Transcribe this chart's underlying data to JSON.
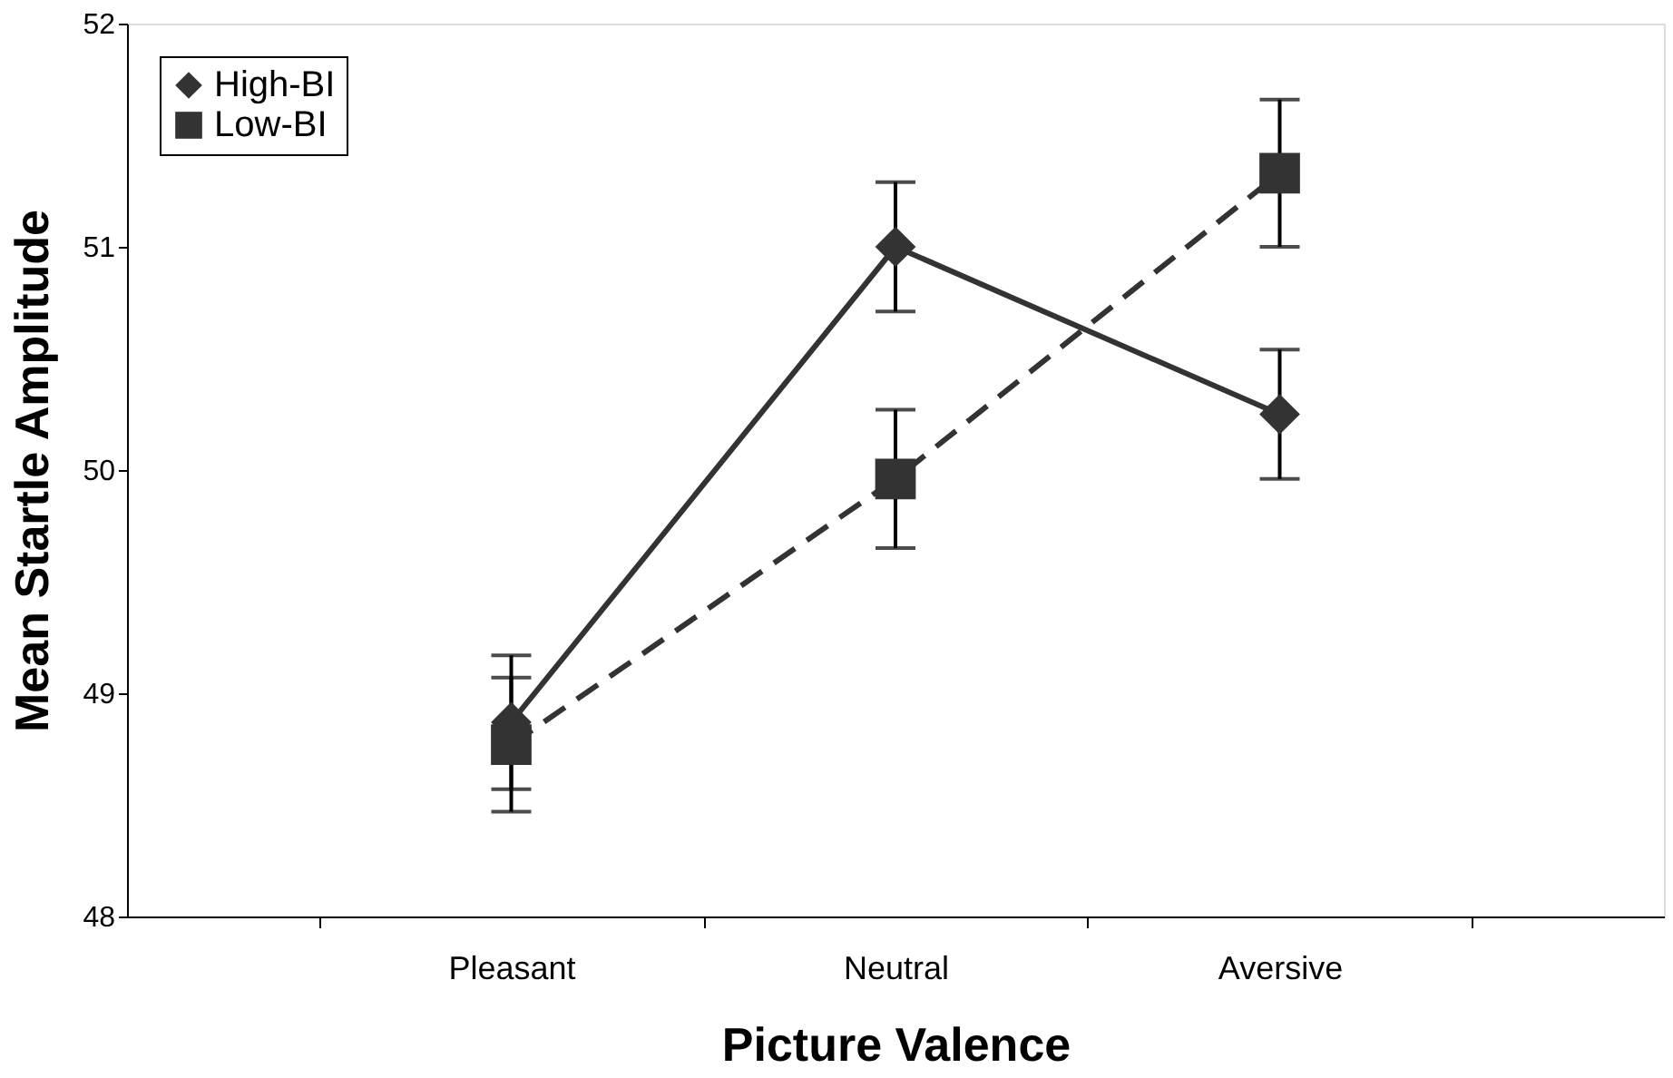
{
  "chart_data": {
    "type": "line",
    "xlabel": "Picture Valence",
    "ylabel": "Mean Startle Amplitude",
    "categories": [
      "Pleasant",
      "Neutral",
      "Aversive"
    ],
    "series": [
      {
        "name": "High-BI",
        "color": "#333333",
        "values": [
          48.87,
          51.0,
          50.25
        ],
        "errors": [
          0.3,
          0.29,
          0.29
        ],
        "marker": "diamond",
        "line_style": "solid"
      },
      {
        "name": "Low-BI",
        "color": "#333333",
        "values": [
          48.77,
          49.96,
          51.33
        ],
        "errors": [
          0.3,
          0.31,
          0.33
        ],
        "marker": "square",
        "line_style": "dashed"
      }
    ],
    "ylim": [
      48,
      52
    ],
    "yticks": [
      48,
      49,
      50,
      51,
      52
    ],
    "grid": false,
    "legend": "top left"
  }
}
